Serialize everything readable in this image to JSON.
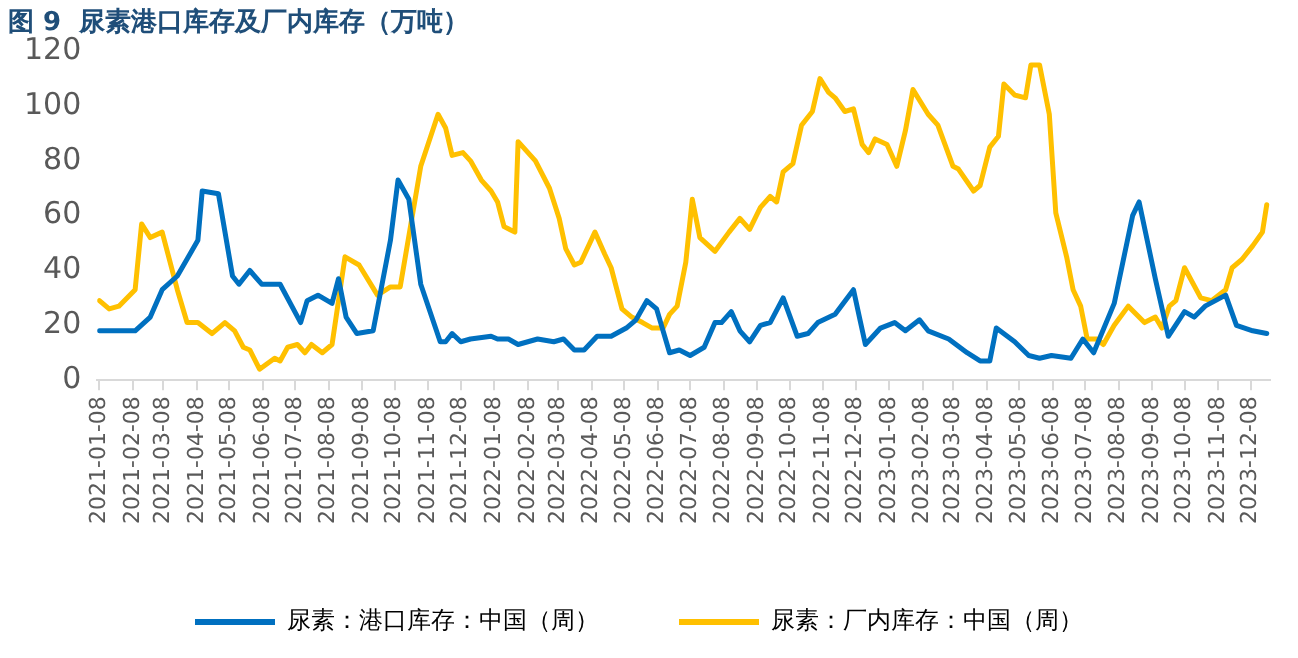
{
  "chart_data": {
    "type": "line",
    "title": "图 9  尿素港口库存及厂内库存（万吨）",
    "xlim": [
      "2021-01-06",
      "2023-12-26"
    ],
    "xticks": [
      "2021-01-08",
      "2021-02-08",
      "2021-03-08",
      "2021-04-08",
      "2021-05-08",
      "2021-06-08",
      "2021-07-08",
      "2021-08-08",
      "2021-09-08",
      "2021-10-08",
      "2021-11-08",
      "2021-12-08",
      "2022-01-08",
      "2022-02-08",
      "2022-03-08",
      "2022-04-08",
      "2022-05-08",
      "2022-06-08",
      "2022-07-08",
      "2022-08-08",
      "2022-09-08",
      "2022-10-08",
      "2022-11-08",
      "2022-12-08",
      "2023-01-08",
      "2023-02-08",
      "2023-03-08",
      "2023-04-08",
      "2023-05-08",
      "2023-06-08",
      "2023-07-08",
      "2023-08-08",
      "2023-09-08",
      "2023-10-08",
      "2023-11-08",
      "2023-12-08"
    ],
    "ylim": [
      0,
      120
    ],
    "yticks": [
      0,
      20,
      40,
      60,
      80,
      100,
      120
    ],
    "grid": false,
    "legend": "bottom",
    "line_style": "solid",
    "marker": "none",
    "series": [
      {
        "name": "尿素：港口库存：中国（周）",
        "color": "#0070c0",
        "x": [
          "2021-01-08",
          "2021-01-17",
          "2021-02-10",
          "2021-02-24",
          "2021-03-07",
          "2021-03-21",
          "2021-04-09",
          "2021-04-13",
          "2021-04-28",
          "2021-05-11",
          "2021-05-17",
          "2021-05-27",
          "2021-06-07",
          "2021-06-24",
          "2021-07-13",
          "2021-07-19",
          "2021-07-29",
          "2021-08-11",
          "2021-08-17",
          "2021-08-24",
          "2021-09-03",
          "2021-09-18",
          "2021-10-04",
          "2021-10-11",
          "2021-10-21",
          "2021-11-01",
          "2021-11-19",
          "2021-11-24",
          "2021-11-30",
          "2021-12-08",
          "2021-12-17",
          "2022-01-05",
          "2022-01-11",
          "2022-01-21",
          "2022-01-30",
          "2022-02-17",
          "2022-03-04",
          "2022-03-13",
          "2022-03-23",
          "2022-04-01",
          "2022-04-13",
          "2022-04-26",
          "2022-05-10",
          "2022-05-19",
          "2022-05-29",
          "2022-06-07",
          "2022-06-19",
          "2022-06-28",
          "2022-07-08",
          "2022-07-21",
          "2022-07-31",
          "2022-08-06",
          "2022-08-15",
          "2022-08-23",
          "2022-09-01",
          "2022-09-11",
          "2022-09-20",
          "2022-10-02",
          "2022-10-15",
          "2022-10-25",
          "2022-11-03",
          "2022-11-19",
          "2022-12-06",
          "2022-12-12",
          "2022-12-17",
          "2022-12-31",
          "2023-01-13",
          "2023-01-23",
          "2023-02-05",
          "2023-02-13",
          "2023-03-04",
          "2023-03-21",
          "2023-04-02",
          "2023-04-11",
          "2023-04-17",
          "2023-05-04",
          "2023-05-17",
          "2023-05-27",
          "2023-06-07",
          "2023-06-25",
          "2023-07-06",
          "2023-07-16",
          "2023-08-04",
          "2023-08-21",
          "2023-08-27",
          "2023-09-11",
          "2023-09-23",
          "2023-10-08",
          "2023-10-17",
          "2023-10-27",
          "2023-11-15",
          "2023-11-25",
          "2023-12-10",
          "2023-12-23"
        ],
        "values": [
          18,
          18,
          18,
          23,
          33,
          38,
          51,
          69,
          68,
          38,
          35,
          40,
          35,
          35,
          21,
          29,
          31,
          28,
          37,
          23,
          17,
          18,
          51,
          73,
          66,
          35,
          14,
          14,
          17,
          14,
          15,
          16,
          15,
          15,
          13,
          15,
          14,
          15,
          11,
          11,
          16,
          16,
          19,
          22,
          29,
          26,
          10,
          11,
          9,
          12,
          21,
          21,
          25,
          18,
          14,
          20,
          21,
          30,
          16,
          17,
          21,
          24,
          33,
          22,
          13,
          19,
          21,
          18,
          22,
          18,
          15,
          10,
          7,
          7,
          19,
          14,
          9,
          8,
          9,
          8,
          15,
          10,
          28,
          60,
          65,
          37,
          16,
          25,
          23,
          27,
          31,
          20,
          18,
          17
        ]
      },
      {
        "name": "尿素：厂内库存：中国（周）",
        "color": "#ffc000",
        "x": [
          "2021-01-08",
          "2021-01-17",
          "2021-01-26",
          "2021-02-10",
          "2021-02-16",
          "2021-02-24",
          "2021-03-07",
          "2021-03-21",
          "2021-03-30",
          "2021-04-09",
          "2021-04-22",
          "2021-05-04",
          "2021-05-13",
          "2021-05-21",
          "2021-05-27",
          "2021-06-05",
          "2021-06-19",
          "2021-06-24",
          "2021-07-01",
          "2021-07-10",
          "2021-07-17",
          "2021-07-23",
          "2021-08-02",
          "2021-08-11",
          "2021-08-23",
          "2021-09-05",
          "2021-09-22",
          "2021-10-04",
          "2021-10-13",
          "2021-11-01",
          "2021-11-17",
          "2021-11-24",
          "2021-11-30",
          "2021-12-10",
          "2021-12-17",
          "2021-12-27",
          "2022-01-05",
          "2022-01-11",
          "2022-01-17",
          "2022-01-27",
          "2022-01-30",
          "2022-02-15",
          "2022-02-28",
          "2022-03-09",
          "2022-03-15",
          "2022-03-23",
          "2022-03-29",
          "2022-04-11",
          "2022-04-20",
          "2022-04-26",
          "2022-05-06",
          "2022-05-15",
          "2022-05-25",
          "2022-06-03",
          "2022-06-13",
          "2022-06-19",
          "2022-06-26",
          "2022-07-04",
          "2022-07-10",
          "2022-07-17",
          "2022-07-31",
          "2022-08-13",
          "2022-08-23",
          "2022-09-01",
          "2022-09-11",
          "2022-09-20",
          "2022-09-26",
          "2022-10-02",
          "2022-10-11",
          "2022-10-19",
          "2022-10-29",
          "2022-11-05",
          "2022-11-13",
          "2022-11-19",
          "2022-11-28",
          "2022-12-06",
          "2022-12-14",
          "2022-12-20",
          "2022-12-26",
          "2023-01-06",
          "2023-01-15",
          "2023-01-23",
          "2023-01-30",
          "2023-02-13",
          "2023-02-22",
          "2023-03-08",
          "2023-03-13",
          "2023-03-27",
          "2023-04-02",
          "2023-04-11",
          "2023-04-19",
          "2023-04-24",
          "2023-05-04",
          "2023-05-14",
          "2023-05-19",
          "2023-05-27",
          "2023-06-05",
          "2023-06-11",
          "2023-06-21",
          "2023-06-27",
          "2023-07-04",
          "2023-07-10",
          "2023-07-19",
          "2023-07-25",
          "2023-08-04",
          "2023-08-17",
          "2023-09-01",
          "2023-09-11",
          "2023-09-17",
          "2023-09-24",
          "2023-09-30",
          "2023-10-08",
          "2023-10-23",
          "2023-11-02",
          "2023-11-15",
          "2023-11-21",
          "2023-11-30",
          "2023-12-10",
          "2023-12-19",
          "2023-12-23"
        ],
        "values": [
          29,
          26,
          27,
          33,
          57,
          52,
          54,
          33,
          21,
          21,
          17,
          21,
          18,
          12,
          11,
          4,
          8,
          7,
          12,
          13,
          10,
          13,
          10,
          13,
          45,
          42,
          31,
          34,
          34,
          78,
          97,
          92,
          82,
          83,
          80,
          73,
          69,
          65,
          56,
          54,
          87,
          80,
          70,
          59,
          48,
          42,
          43,
          54,
          46,
          41,
          26,
          23,
          21,
          19,
          19,
          24,
          27,
          43,
          66,
          52,
          47,
          54,
          59,
          55,
          63,
          67,
          65,
          76,
          79,
          93,
          98,
          110,
          105,
          103,
          98,
          99,
          86,
          83,
          88,
          86,
          78,
          91,
          106,
          97,
          93,
          78,
          77,
          69,
          71,
          85,
          89,
          108,
          104,
          103,
          115,
          115,
          97,
          61,
          45,
          33,
          27,
          15,
          15,
          13,
          20,
          27,
          21,
          23,
          19,
          27,
          29,
          41,
          30,
          29,
          33,
          41,
          44,
          49,
          54,
          64
        ]
      }
    ]
  }
}
